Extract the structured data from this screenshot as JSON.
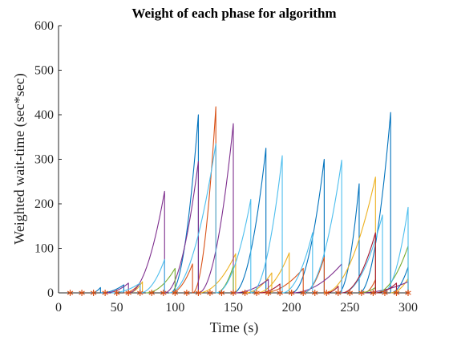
{
  "chart_data": {
    "type": "line",
    "title": "Weight of each phase for algorithm",
    "xlabel": "Time (s)",
    "ylabel": "Weighted wait-time (sec*sec)",
    "xlim": [
      0,
      300
    ],
    "ylim": [
      0,
      600
    ],
    "xticks": [
      0,
      50,
      100,
      150,
      200,
      250,
      300
    ],
    "yticks": [
      0,
      100,
      200,
      300,
      400,
      500,
      600
    ],
    "grid": false,
    "colors": [
      "#0072BD",
      "#D95319",
      "#EDB120",
      "#7E2F8E",
      "#77AC30",
      "#4DBEEE",
      "#A2142F"
    ],
    "series": [
      {
        "color": "#0072BD",
        "segments": [
          [
            [
              28,
              0
            ],
            [
              36,
              12
            ]
          ],
          [
            [
              36,
              0
            ],
            [
              56,
              18
            ]
          ],
          [
            [
              96,
              0
            ],
            [
              120,
              400
            ]
          ],
          [
            [
              150,
              0
            ],
            [
              178,
              325
            ]
          ],
          [
            [
              200,
              0
            ],
            [
              228,
              300
            ]
          ],
          [
            [
              240,
              0
            ],
            [
              258,
              245
            ]
          ],
          [
            [
              258,
              0
            ],
            [
              285,
              405
            ]
          ],
          [
            [
              285,
              0
            ],
            [
              300,
              58
            ]
          ]
        ]
      },
      {
        "color": "#D95319",
        "segments": [
          [
            [
              56,
              0
            ],
            [
              70,
              22
            ]
          ],
          [
            [
              96,
              0
            ],
            [
              115,
              65
            ]
          ],
          [
            [
              115,
              0
            ],
            [
              135,
              418
            ]
          ],
          [
            [
              175,
              0
            ],
            [
              210,
              55
            ]
          ],
          [
            [
              210,
              0
            ],
            [
              228,
              80
            ]
          ],
          [
            [
              262,
              0
            ],
            [
              272,
              30
            ]
          ]
        ]
      },
      {
        "color": "#EDB120",
        "segments": [
          [
            [
              60,
              0
            ],
            [
              72,
              25
            ]
          ],
          [
            [
              120,
              0
            ],
            [
              152,
              88
            ]
          ],
          [
            [
              160,
              0
            ],
            [
              183,
              45
            ]
          ],
          [
            [
              170,
              0
            ],
            [
              198,
              90
            ]
          ],
          [
            [
              228,
              0
            ],
            [
              272,
              260
            ]
          ],
          [
            [
              285,
              0
            ],
            [
              300,
              32
            ]
          ]
        ]
      },
      {
        "color": "#7E2F8E",
        "segments": [
          [
            [
              40,
              0
            ],
            [
              60,
              22
            ]
          ],
          [
            [
              60,
              0
            ],
            [
              91,
              228
            ]
          ],
          [
            [
              91,
              0
            ],
            [
              120,
              295
            ]
          ],
          [
            [
              120,
              0
            ],
            [
              150,
              380
            ]
          ],
          [
            [
              150,
              0
            ],
            [
              180,
              30
            ]
          ],
          [
            [
              200,
              0
            ],
            [
              243,
              65
            ]
          ],
          [
            [
              258,
              0
            ],
            [
              300,
              25
            ]
          ]
        ]
      },
      {
        "color": "#77AC30",
        "segments": [
          [
            [
              75,
              0
            ],
            [
              100,
              55
            ]
          ],
          [
            [
              135,
              0
            ],
            [
              150,
              60
            ]
          ],
          [
            [
              258,
              0
            ],
            [
              272,
              12
            ]
          ],
          [
            [
              272,
              0
            ],
            [
              300,
              105
            ]
          ]
        ]
      },
      {
        "color": "#4DBEEE",
        "segments": [
          [
            [
              45,
              0
            ],
            [
              70,
              22
            ]
          ],
          [
            [
              70,
              0
            ],
            [
              91,
              75
            ]
          ],
          [
            [
              95,
              0
            ],
            [
              135,
              335
            ]
          ],
          [
            [
              135,
              0
            ],
            [
              165,
              210
            ]
          ],
          [
            [
              165,
              0
            ],
            [
              192,
              308
            ]
          ],
          [
            [
              192,
              0
            ],
            [
              218,
              135
            ]
          ],
          [
            [
              210,
              0
            ],
            [
              243,
              298
            ]
          ],
          [
            [
              243,
              0
            ],
            [
              278,
              175
            ]
          ],
          [
            [
              278,
              0
            ],
            [
              300,
              192
            ]
          ]
        ]
      },
      {
        "color": "#A2142F",
        "segments": [
          [
            [
              172,
              0
            ],
            [
              190,
              20
            ]
          ],
          [
            [
              230,
              0
            ],
            [
              240,
              15
            ]
          ],
          [
            [
              243,
              0
            ],
            [
              272,
              135
            ]
          ],
          [
            [
              272,
              0
            ],
            [
              290,
              22
            ]
          ]
        ]
      }
    ],
    "markers": {
      "color": "#D95319",
      "symbol": "*",
      "y": 0,
      "x": [
        10,
        20,
        30,
        40,
        50,
        60,
        70,
        80,
        90,
        100,
        110,
        120,
        130,
        140,
        150,
        160,
        170,
        180,
        190,
        200,
        210,
        220,
        230,
        240,
        250,
        260,
        270,
        280,
        290,
        300
      ]
    }
  }
}
